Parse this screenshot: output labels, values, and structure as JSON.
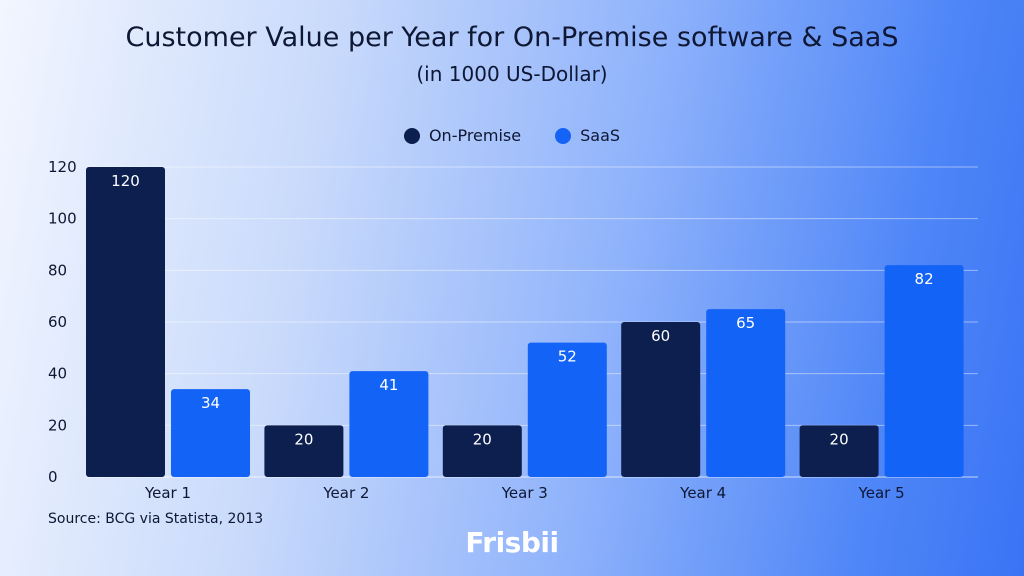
{
  "chart_data": {
    "type": "bar",
    "title": "Customer Value per Year for On-Premise software & SaaS",
    "subtitle": "(in 1000 US-Dollar)",
    "categories": [
      "Year 1",
      "Year 2",
      "Year 3",
      "Year 4",
      "Year 5"
    ],
    "series": [
      {
        "name": "On-Premise",
        "color": "#0c1f4f",
        "values": [
          120,
          20,
          20,
          60,
          20
        ]
      },
      {
        "name": "SaaS",
        "color": "#1463f7",
        "values": [
          34,
          41,
          52,
          65,
          82
        ]
      }
    ],
    "yticks": [
      0,
      20,
      40,
      60,
      80,
      100,
      120
    ],
    "ylim": [
      0,
      120
    ],
    "grid": true,
    "legend_position": "top-center",
    "xlabel": "",
    "ylabel": ""
  },
  "source": "Source: BCG via Statista, 2013",
  "brand": "Frisbii"
}
